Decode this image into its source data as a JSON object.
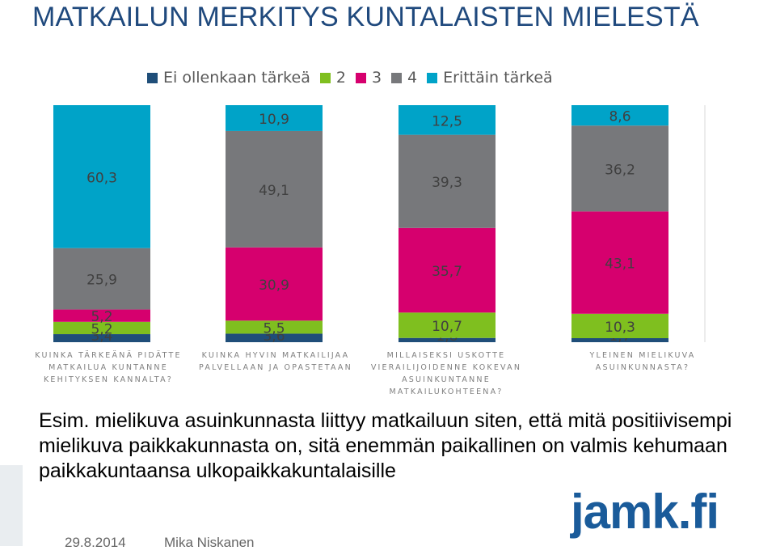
{
  "title": "MATKAILUN MERKITYS KUNTALAISTEN MIELESTÄ",
  "colors": {
    "title": "#1f497d",
    "s1": "#1f4e79",
    "s2": "#7fbf1f",
    "s3": "#d6006e",
    "s4": "#77787b",
    "s5": "#00a3c8"
  },
  "chart_data": {
    "type": "bar",
    "stacked": true,
    "percent": true,
    "categories": [
      "KUINKA TÄRKEÄNÄ PIDÄTTE MATKAILUA KUNTANNE KEHITYKSEN KANNALTA?",
      "KUINKA HYVIN MATKAILIJAA PALVELLAAN JA OPASTETAAN",
      "MILLAISEKSI USKOTTE VIERAILIJOIDENNE KOKEVAN ASUINKUNTANNE MATKAILUKOHTEENA?",
      "YLEINEN MIELIKUVA ASUINKUNNASTA?"
    ],
    "series": [
      {
        "name": "Ei ollenkaan tärkeä",
        "color": "#1f4e79",
        "values": [
          3.4,
          3.6,
          1.8,
          1.7
        ]
      },
      {
        "name": "2",
        "color": "#7fbf1f",
        "values": [
          5.2,
          5.5,
          10.7,
          10.3
        ]
      },
      {
        "name": "3",
        "color": "#d6006e",
        "values": [
          5.2,
          30.9,
          35.7,
          43.1
        ]
      },
      {
        "name": "4",
        "color": "#77787b",
        "values": [
          25.9,
          49.1,
          39.3,
          36.2
        ]
      },
      {
        "name": "Erittäin tärkeä",
        "color": "#00a3c8",
        "values": [
          60.3,
          10.9,
          12.5,
          8.6
        ]
      }
    ],
    "labels": [
      [
        "3,4",
        "5,2",
        "5,2",
        "25,9",
        "60,3"
      ],
      [
        "3,6",
        "5,5",
        "30,9",
        "49,1",
        "10,9"
      ],
      [
        "1,8",
        "10,7",
        "35,7",
        "39,3",
        "12,5"
      ],
      [
        "1,7",
        "10,3",
        "43,1",
        "36,2",
        "8,6"
      ]
    ],
    "ylim": [
      0,
      100
    ],
    "grid": false,
    "legend_position": "top"
  },
  "caption": "Esim. mielikuva asuinkunnasta liittyy matkailuun siten, että mitä positiivisempi mielikuva paikkakunnasta on, sitä enemmän paikallinen on valmis kehumaan paikkakuntaansa ulkopaikkakuntalaisille",
  "footer": {
    "date": "29.8.2014",
    "author": "Mika Niskanen"
  },
  "logo": {
    "text": "jamk.fi"
  }
}
